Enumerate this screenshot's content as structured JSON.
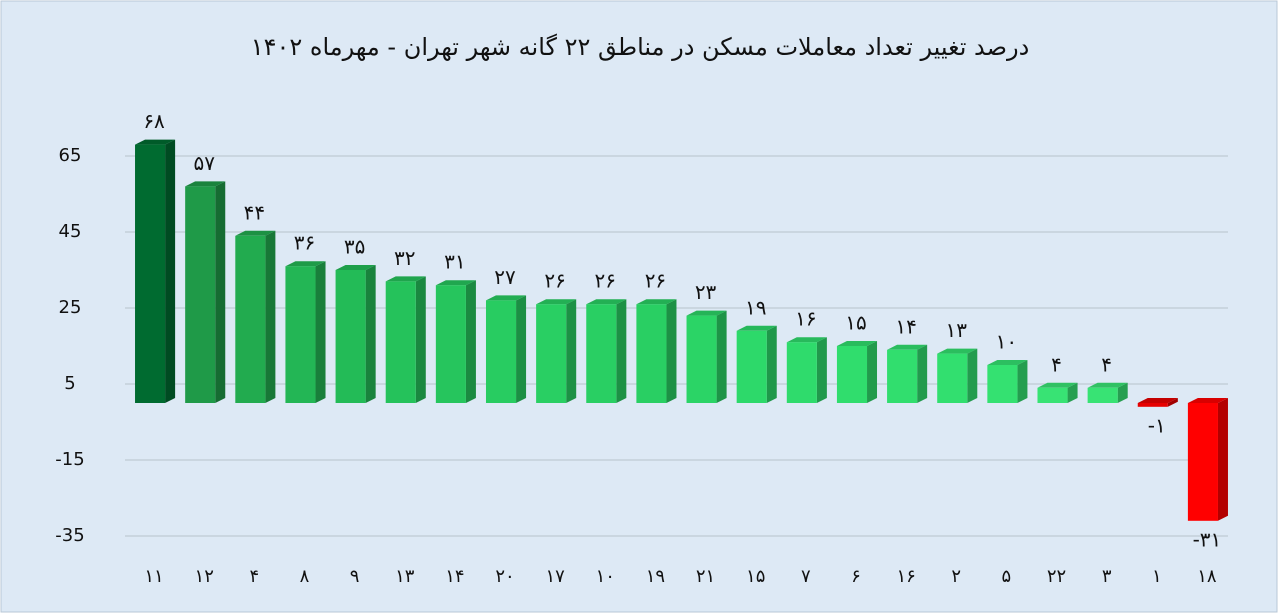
{
  "chart_data": {
    "type": "bar",
    "title": "درصد تغییر تعداد معاملات مسکن در مناطق ۲۲ گانه شهر تهران - مهرماه ۱۴۰۲",
    "categories": [
      "۱۱",
      "۱۲",
      "۴",
      "۸",
      "۹",
      "۱۳",
      "۱۴",
      "۲۰",
      "۱۷",
      "۱۰",
      "۱۹",
      "۲۱",
      "۱۵",
      "۷",
      "۶",
      "۱۶",
      "۲",
      "۵",
      "۲۲",
      "۳",
      "۱",
      "۱۸"
    ],
    "values": [
      68,
      57,
      44,
      36,
      35,
      32,
      31,
      27,
      26,
      26,
      26,
      23,
      19,
      16,
      15,
      14,
      13,
      10,
      4,
      4,
      -1,
      -31
    ],
    "value_labels": [
      "۶۸",
      "۵۷",
      "۴۴",
      "۳۶",
      "۳۵",
      "۳۲",
      "۳۱",
      "۲۷",
      "۲۶",
      "۲۶",
      "۲۶",
      "۲۳",
      "۱۹",
      "۱۶",
      "۱۵",
      "۱۴",
      "۱۳",
      "۱۰",
      "۴",
      "۴",
      "-۱",
      "-۳۱"
    ],
    "colors": [
      "#006b30",
      "#1f9a48",
      "#22ab4f",
      "#23b655",
      "#23bb57",
      "#25c25b",
      "#26c55d",
      "#28cc61",
      "#29cf63",
      "#29cf63",
      "#29cf63",
      "#2bd466",
      "#2dd96a",
      "#2fdb6c",
      "#30dd6d",
      "#31de6e",
      "#32df6f",
      "#34e171",
      "#38e374",
      "#38e374",
      "#e60000",
      "#ff0000"
    ],
    "ylim": [
      -35,
      85
    ],
    "yticks": [
      -35,
      -15,
      5,
      25,
      45,
      65
    ],
    "grid": true
  }
}
